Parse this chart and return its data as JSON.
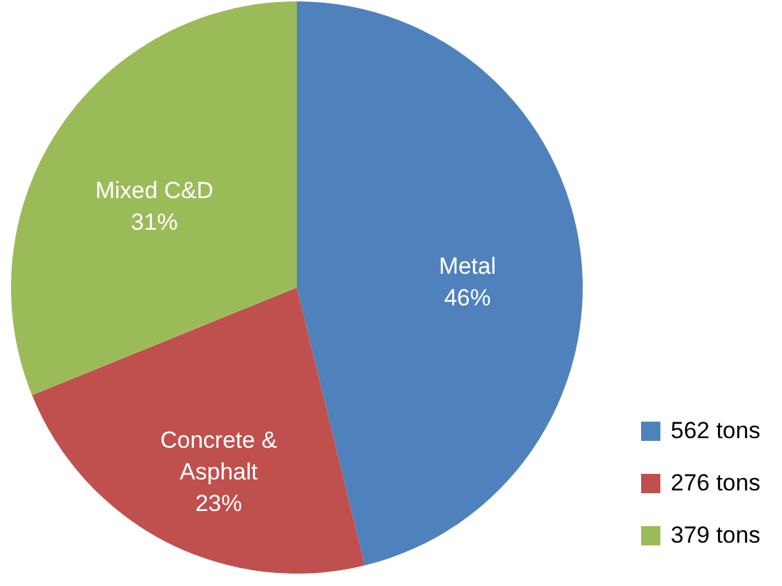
{
  "chart_data": {
    "type": "pie",
    "categories": [
      "562 tons",
      "276 tons",
      "379 tons"
    ],
    "values": [
      562,
      276,
      379
    ],
    "colors": [
      "#4f81bd",
      "#c0504d",
      "#9bbb59"
    ],
    "value_labels": [
      "Metal 46%",
      "Concrete & Asphalt 23%",
      "Mixed C&D 31%"
    ],
    "legend": "bottom right"
  }
}
